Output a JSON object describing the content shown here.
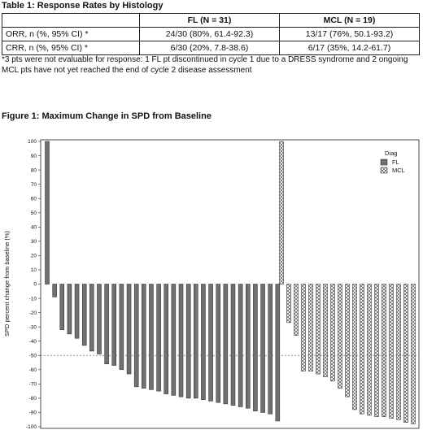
{
  "table": {
    "title": "Table 1: Response Rates by Histology",
    "headers": [
      "",
      "FL (N = 31)",
      "MCL (N = 19)"
    ],
    "rows": [
      {
        "label": "ORR, n (%, 95% CI) *",
        "fl": "24/30 (80%, 61.4-92.3)",
        "mcl": "13/17 (76%, 50.1-93.2)"
      },
      {
        "label": "CRR, n (%, 95% CI) *",
        "fl": "6/30 (20%, 7.8-38.6)",
        "mcl": "6/17 (35%, 14.2-61.7)"
      }
    ],
    "footnote": "*3 pts were not evaluable for response: 1 FL pt discontinued in cycle 1 due to a DRESS syndrome and 2 ongoing MCL pts have not yet reached the end of cycle 2 disease assessment"
  },
  "figure": {
    "title": "Figure 1: Maximum Change in SPD from Baseline"
  },
  "chart_data": {
    "type": "bar",
    "ylabel": "SPD percent change from baseline (%)",
    "ylim": [
      -100,
      100
    ],
    "yticks": [
      100,
      90,
      80,
      70,
      60,
      50,
      40,
      30,
      20,
      10,
      0,
      -10,
      -20,
      -30,
      -40,
      -50,
      -60,
      -70,
      -80,
      -90,
      -100
    ],
    "reference_line": -50,
    "legend": {
      "title": "Diag",
      "position": "top-right"
    },
    "series": [
      {
        "name": "FL",
        "fill": "#707070",
        "values": [
          100,
          -9,
          -32,
          -35,
          -38,
          -43,
          -47,
          -49,
          -56,
          -57,
          -60,
          -63,
          -72,
          -73,
          -74,
          -75,
          -77,
          -78,
          -79,
          -80,
          -80,
          -81,
          -82,
          -83,
          -84,
          -85,
          -86,
          -87,
          -89,
          -90,
          -91,
          -96
        ]
      },
      {
        "name": "MCL",
        "fill": "pattern",
        "values": [
          100,
          -27,
          -36,
          -61,
          -61,
          -63,
          -65,
          -68,
          -73,
          -79,
          -88,
          -91,
          -92,
          -93,
          -93,
          -94,
          -95,
          -97,
          -98
        ]
      }
    ]
  }
}
